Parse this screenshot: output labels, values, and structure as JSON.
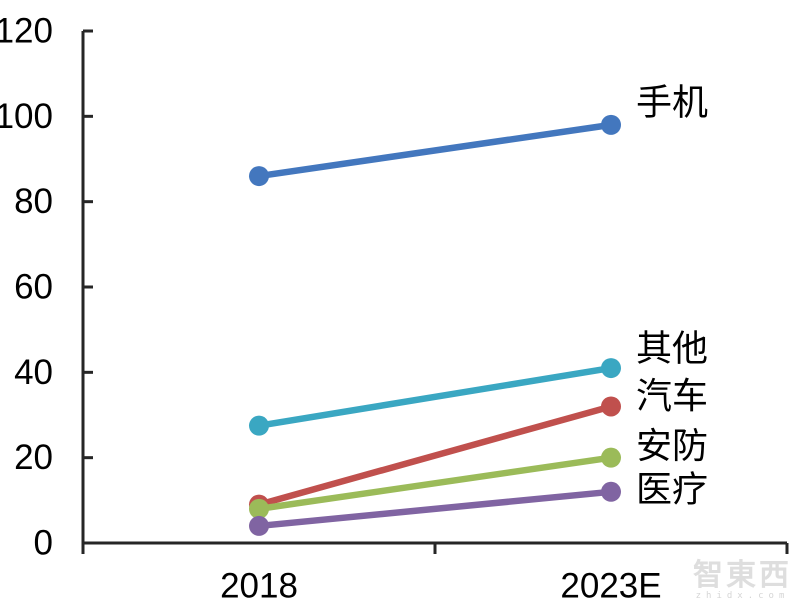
{
  "chart_data": {
    "type": "line",
    "categories": [
      "2018",
      "2023E"
    ],
    "series": [
      {
        "name": "手机",
        "values": [
          86,
          98
        ],
        "color": "#4377BE",
        "label_dy": -22
      },
      {
        "name": "汽车",
        "values": [
          9,
          32
        ],
        "color": "#C0504D",
        "label_dy": -10
      },
      {
        "name": "安防",
        "values": [
          8,
          20
        ],
        "color": "#9BBB59",
        "label_dy": -11
      },
      {
        "name": "医疗",
        "values": [
          4,
          12
        ],
        "color": "#8064A2",
        "label_dy": -2
      },
      {
        "name": "其他",
        "values": [
          27.5,
          41
        ],
        "color": "#3AA7C2",
        "label_dy": -19
      }
    ],
    "title": "",
    "xlabel": "",
    "ylabel": "",
    "ylim": [
      0,
      120
    ],
    "yticks": [
      0,
      20,
      40,
      60,
      80,
      100,
      120
    ],
    "grid": false,
    "legend_position": "labels-at-line-ends",
    "axis_color": "#262626",
    "tick_label_color": "#000000",
    "series_label_color": "#000000"
  },
  "watermark": {
    "logo": "智東西",
    "url": "zhidx.com"
  }
}
